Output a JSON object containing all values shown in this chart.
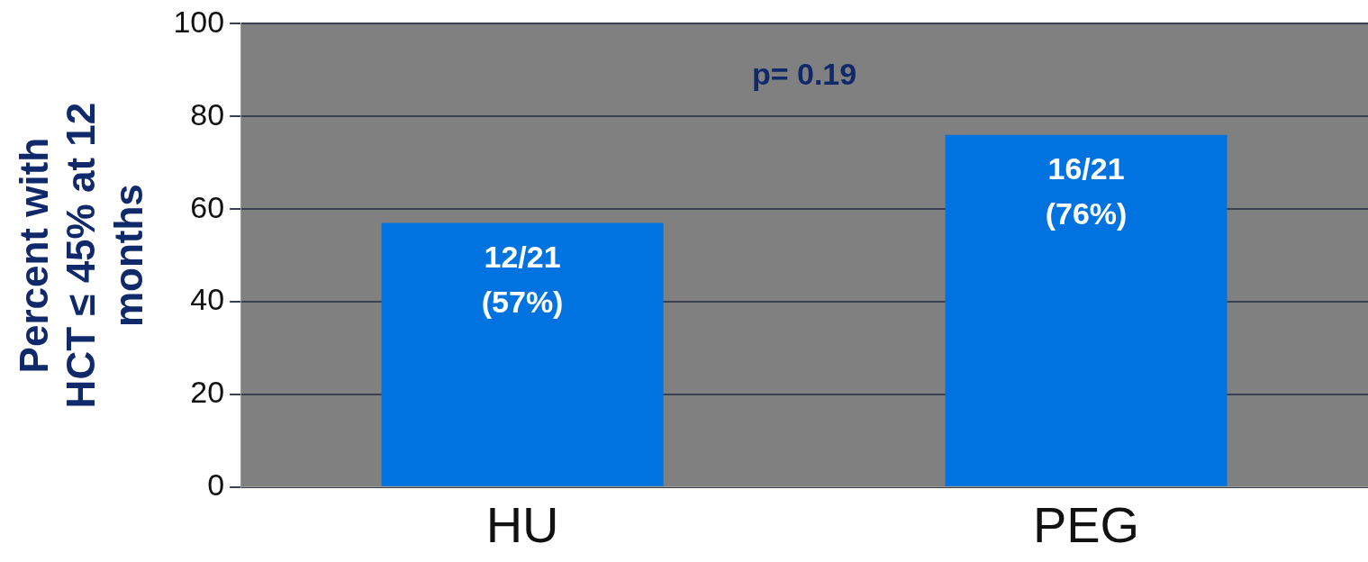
{
  "chart_data": {
    "type": "bar",
    "ylabel": "Percent with HCT ≤ 45% at 12 months",
    "categories": [
      "HU",
      "PEG"
    ],
    "values": [
      57,
      76
    ],
    "color": "#0073e0",
    "value_labels": [
      "12/21\n(57%)",
      "16/21\n(76%)"
    ],
    "annotations": [
      "p= 0.19"
    ],
    "ylim": [
      0,
      100
    ],
    "yticks": [
      0,
      20,
      40,
      60,
      80,
      100
    ],
    "grid": "y",
    "legend": false
  }
}
